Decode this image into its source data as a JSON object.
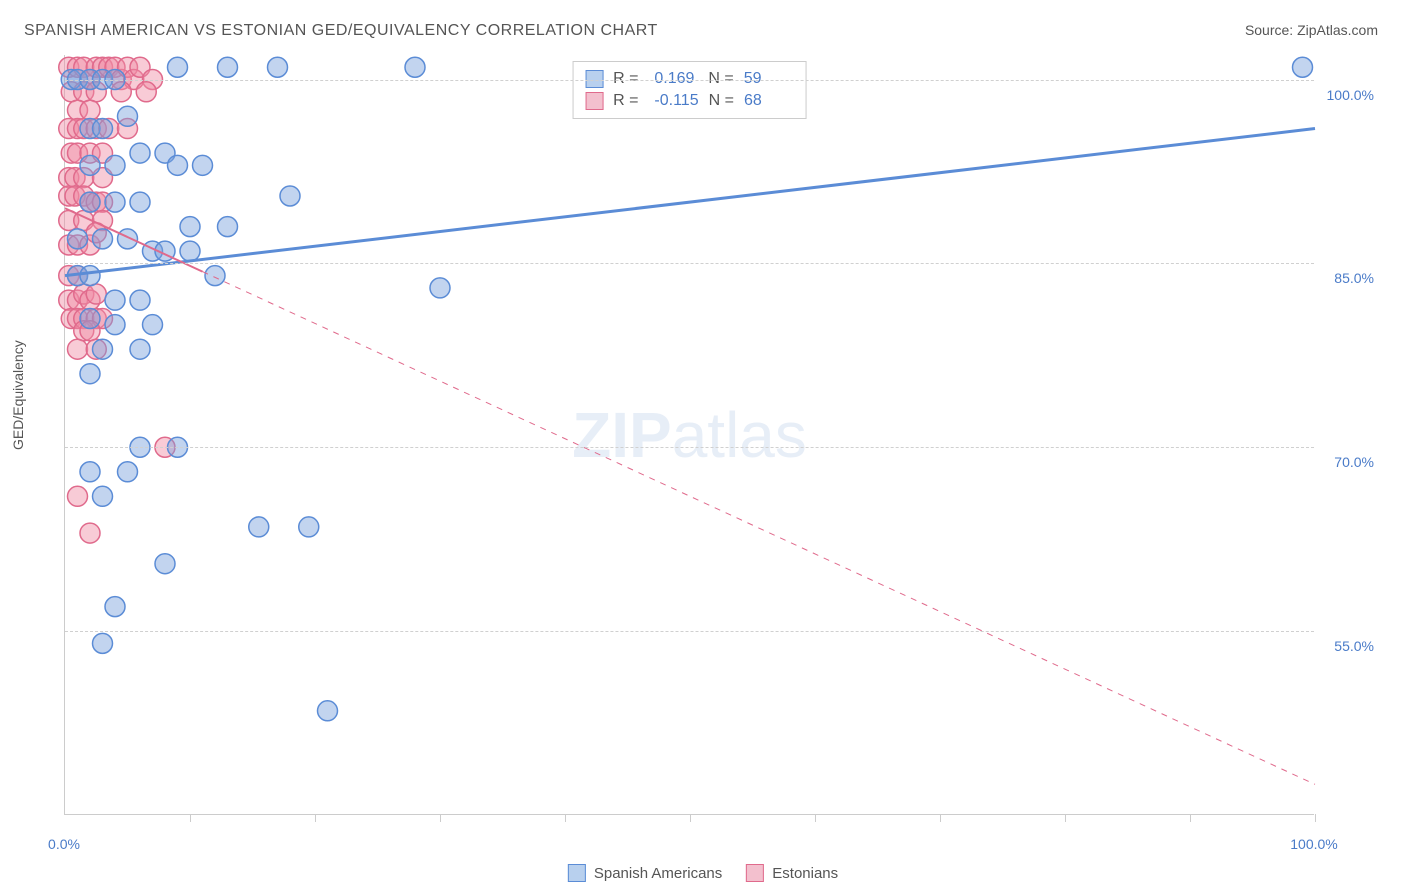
{
  "title": "SPANISH AMERICAN VS ESTONIAN GED/EQUIVALENCY CORRELATION CHART",
  "source": "Source: ZipAtlas.com",
  "y_axis_label": "GED/Equivalency",
  "watermark_a": "ZIP",
  "watermark_b": "atlas",
  "chart": {
    "type": "scatter",
    "background_color": "#ffffff",
    "grid_color": "#d0d0d0",
    "axis_color": "#cccccc",
    "xlim": [
      0,
      100
    ],
    "ylim": [
      40,
      102
    ],
    "y_ticks": [
      {
        "value": 55.0,
        "label": "55.0%"
      },
      {
        "value": 70.0,
        "label": "70.0%"
      },
      {
        "value": 85.0,
        "label": "85.0%"
      },
      {
        "value": 100.0,
        "label": "100.0%"
      }
    ],
    "x_ticks": [
      10,
      20,
      30,
      40,
      50,
      60,
      70,
      80,
      90,
      100
    ],
    "x_tick_labels": [
      {
        "value": 0,
        "label": "0.0%"
      },
      {
        "value": 100,
        "label": "100.0%"
      }
    ],
    "series": [
      {
        "name": "Spanish Americans",
        "color_fill": "rgba(120,160,220,0.45)",
        "color_stroke": "#5b8cd6",
        "swatch_fill": "#b8d0ee",
        "swatch_border": "#5b8cd6",
        "marker_radius": 10,
        "stats": {
          "R_label": "R =",
          "R": "0.169",
          "N_label": "N =",
          "N": "59"
        },
        "trend": {
          "x1": 0,
          "y1": 84.0,
          "x2": 100,
          "y2": 96.0,
          "width": 3,
          "solid_to_x": 100,
          "dashed": false
        },
        "points": [
          [
            0.5,
            100
          ],
          [
            1,
            100
          ],
          [
            2,
            100
          ],
          [
            3,
            100
          ],
          [
            4,
            100
          ],
          [
            9,
            101
          ],
          [
            13,
            101
          ],
          [
            17,
            101
          ],
          [
            28,
            101
          ],
          [
            99,
            101
          ],
          [
            2,
            96
          ],
          [
            3,
            96
          ],
          [
            5,
            97
          ],
          [
            2,
            93
          ],
          [
            4,
            93
          ],
          [
            6,
            94
          ],
          [
            8,
            94
          ],
          [
            9,
            93
          ],
          [
            11,
            93
          ],
          [
            4,
            90
          ],
          [
            6,
            90
          ],
          [
            2,
            90
          ],
          [
            18,
            90.5
          ],
          [
            1,
            87
          ],
          [
            3,
            87
          ],
          [
            5,
            87
          ],
          [
            7,
            86
          ],
          [
            8,
            86
          ],
          [
            10,
            86
          ],
          [
            12,
            84
          ],
          [
            1,
            84
          ],
          [
            2,
            84
          ],
          [
            4,
            82
          ],
          [
            6,
            82
          ],
          [
            7,
            80
          ],
          [
            10,
            88
          ],
          [
            13,
            88
          ],
          [
            2,
            80.5
          ],
          [
            4,
            80
          ],
          [
            6,
            78
          ],
          [
            3,
            78
          ],
          [
            2,
            76
          ],
          [
            30,
            83
          ],
          [
            2,
            68
          ],
          [
            5,
            68
          ],
          [
            6,
            70
          ],
          [
            9,
            70
          ],
          [
            15.5,
            63.5
          ],
          [
            19.5,
            63.5
          ],
          [
            3,
            66
          ],
          [
            8,
            60.5
          ],
          [
            4,
            57
          ],
          [
            3,
            54
          ],
          [
            21,
            48.5
          ]
        ]
      },
      {
        "name": "Estonians",
        "color_fill": "rgba(240,140,165,0.45)",
        "color_stroke": "#e06a8c",
        "swatch_fill": "#f3c0ce",
        "swatch_border": "#e06a8c",
        "marker_radius": 10,
        "stats": {
          "R_label": "R =",
          "R": "-0.115",
          "N_label": "N =",
          "N": "68"
        },
        "trend": {
          "x1": 0,
          "y1": 89.5,
          "x2": 100,
          "y2": 42.5,
          "width": 2,
          "solid_to_x": 11,
          "dashed": true
        },
        "points": [
          [
            0.3,
            101
          ],
          [
            1,
            101
          ],
          [
            1.5,
            101
          ],
          [
            2,
            100
          ],
          [
            2.5,
            101
          ],
          [
            3,
            101
          ],
          [
            3.5,
            101
          ],
          [
            4,
            101
          ],
          [
            4.5,
            100
          ],
          [
            5,
            101
          ],
          [
            5.5,
            100
          ],
          [
            6,
            101
          ],
          [
            7,
            100
          ],
          [
            0.5,
            99
          ],
          [
            1.5,
            99
          ],
          [
            2.5,
            99
          ],
          [
            4.5,
            99
          ],
          [
            6.5,
            99
          ],
          [
            1,
            97.5
          ],
          [
            2,
            97.5
          ],
          [
            0.3,
            96
          ],
          [
            1,
            96
          ],
          [
            1.5,
            96
          ],
          [
            2.5,
            96
          ],
          [
            3.5,
            96
          ],
          [
            5,
            96
          ],
          [
            0.5,
            94
          ],
          [
            1,
            94
          ],
          [
            2,
            94
          ],
          [
            3,
            94
          ],
          [
            0.3,
            92
          ],
          [
            0.8,
            92
          ],
          [
            1.5,
            92
          ],
          [
            3,
            92
          ],
          [
            0.3,
            90.5
          ],
          [
            0.8,
            90.5
          ],
          [
            1.5,
            90.5
          ],
          [
            2,
            90
          ],
          [
            2.5,
            90
          ],
          [
            3,
            90
          ],
          [
            0.3,
            88.5
          ],
          [
            1.5,
            88.5
          ],
          [
            3,
            88.5
          ],
          [
            0.3,
            86.5
          ],
          [
            1,
            86.5
          ],
          [
            2,
            86.5
          ],
          [
            2.5,
            87.5
          ],
          [
            0.3,
            84
          ],
          [
            1,
            84
          ],
          [
            0.3,
            82
          ],
          [
            1,
            82
          ],
          [
            1.5,
            82.5
          ],
          [
            2,
            82
          ],
          [
            2.5,
            82.5
          ],
          [
            0.5,
            80.5
          ],
          [
            1,
            80.5
          ],
          [
            1.5,
            80.5
          ],
          [
            2.5,
            80.5
          ],
          [
            3,
            80.5
          ],
          [
            1.5,
            79.5
          ],
          [
            2,
            79.5
          ],
          [
            1,
            78
          ],
          [
            2.5,
            78
          ],
          [
            8,
            70
          ],
          [
            1,
            66
          ],
          [
            2,
            63
          ]
        ]
      }
    ]
  },
  "legend_bottom": [
    {
      "label": "Spanish Americans",
      "fill": "#b8d0ee",
      "border": "#5b8cd6"
    },
    {
      "label": "Estonians",
      "fill": "#f3c0ce",
      "border": "#e06a8c"
    }
  ]
}
